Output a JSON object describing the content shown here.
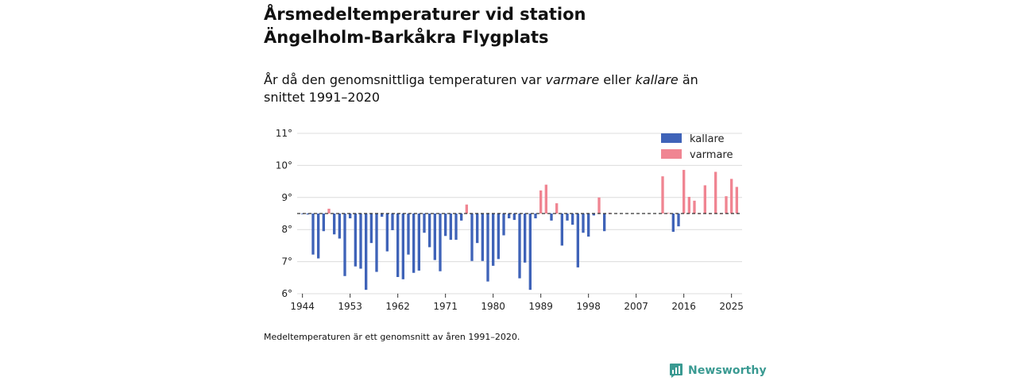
{
  "title_line1": "Årsmedeltemperaturer vid station",
  "title_line2": "Ängelholm-Barkåkra Flygplats",
  "subtitle": {
    "part1": "År då den genomsnittliga temperaturen var ",
    "warm_word": "varmare",
    "part2": " eller ",
    "cold_word": "kallare",
    "part3": " än snittet 1991–2020"
  },
  "note": "Medeltemperaturen är ett genomsnitt av åren 1991–2020.",
  "brand": "Newsworthy",
  "colors": {
    "cold": "#3f63b8",
    "warm": "#f08592",
    "grid": "#dcdcdc",
    "baseline": "#333333",
    "brand": "#3a9a92"
  },
  "chart_data": {
    "type": "bar",
    "title": "Årsmedeltemperaturer vid station Ängelholm-Barkåkra Flygplats",
    "xlabel": "",
    "ylabel": "",
    "baseline": 8.5,
    "ylim": [
      6,
      11
    ],
    "yticks": [
      6,
      7,
      8,
      9,
      10,
      11
    ],
    "ytick_labels": [
      "6°",
      "7°",
      "8°",
      "9°",
      "10°",
      "11°"
    ],
    "xlim": [
      1943,
      2027
    ],
    "xticks": [
      1944,
      1953,
      1962,
      1971,
      1980,
      1989,
      1998,
      2007,
      2016,
      2025
    ],
    "xtick_labels": [
      "1944",
      "1953",
      "1962",
      "1971",
      "1980",
      "1989",
      "1998",
      "2007",
      "2016",
      "2025"
    ],
    "legend": [
      "kallare",
      "varmare"
    ],
    "legend_position": "top-right",
    "series": [
      {
        "name": "Årsmedeltemperatur",
        "x": [
          1944,
          1945,
          1946,
          1947,
          1948,
          1949,
          1950,
          1951,
          1952,
          1953,
          1954,
          1955,
          1956,
          1957,
          1958,
          1959,
          1960,
          1961,
          1962,
          1963,
          1964,
          1965,
          1966,
          1967,
          1968,
          1969,
          1970,
          1971,
          1972,
          1973,
          1974,
          1975,
          1976,
          1977,
          1978,
          1979,
          1980,
          1981,
          1982,
          1983,
          1984,
          1985,
          1986,
          1987,
          1988,
          1989,
          1990,
          1991,
          1992,
          1993,
          1994,
          1995,
          1996,
          1997,
          1998,
          1999,
          2000,
          2001,
          2002,
          2012,
          2013,
          2014,
          2015,
          2016,
          2017,
          2018,
          2019,
          2020,
          2021,
          2022,
          2023,
          2024,
          2025,
          2026
        ],
        "values": [
          8.48,
          8.47,
          7.22,
          7.1,
          7.95,
          8.65,
          7.85,
          7.72,
          6.55,
          8.35,
          6.85,
          6.78,
          6.12,
          7.58,
          6.68,
          8.4,
          7.32,
          7.98,
          6.52,
          6.45,
          7.22,
          6.65,
          6.72,
          7.9,
          7.45,
          7.05,
          6.7,
          7.8,
          7.68,
          7.68,
          8.28,
          8.78,
          7.02,
          7.58,
          7.02,
          6.38,
          6.87,
          7.08,
          7.82,
          8.35,
          8.3,
          6.48,
          6.97,
          6.12,
          8.35,
          9.22,
          9.4,
          8.28,
          8.82,
          7.5,
          8.28,
          8.15,
          6.82,
          7.9,
          7.78,
          8.44,
          9.0,
          7.95,
          8.52,
          9.66,
          8.52,
          7.93,
          8.1,
          9.86,
          9.02,
          8.9,
          8.5,
          9.38,
          8.5,
          9.8,
          8.5,
          9.04,
          9.58,
          9.33
        ]
      }
    ]
  }
}
